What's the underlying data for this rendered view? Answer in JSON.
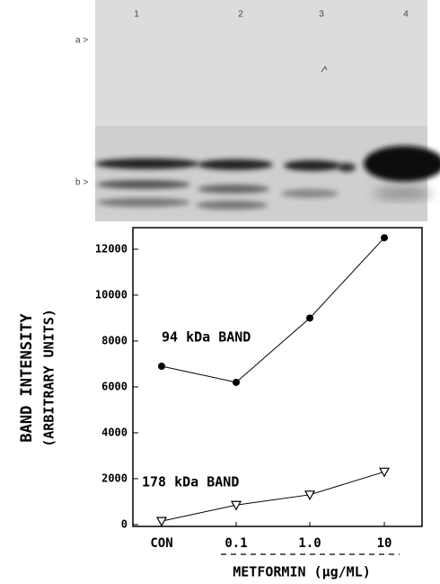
{
  "gel": {
    "lanes": [
      "1",
      "2",
      "3",
      "4"
    ],
    "markers": [
      "a >",
      "b >"
    ]
  },
  "chart_data": {
    "type": "line",
    "categories": [
      "CON",
      "0.1",
      "1.0",
      "10"
    ],
    "series": [
      {
        "name": "94 kDa BAND",
        "color": "#000000",
        "marker": "circle",
        "values": [
          6900,
          6200,
          9000,
          12500
        ]
      },
      {
        "name": "178 kDa BAND",
        "color": "#000000",
        "marker": "triangle-down",
        "values": [
          150,
          850,
          1300,
          2300
        ]
      }
    ],
    "ylim": [
      -80,
      12940
    ],
    "yticks": [
      0,
      2000,
      4000,
      6000,
      8000,
      10000,
      12000
    ],
    "y_label": [
      "BAND INTENSITY",
      "(ARBITRARY UNITS)"
    ],
    "x_label": "METFORMIN (μg/ML)"
  }
}
